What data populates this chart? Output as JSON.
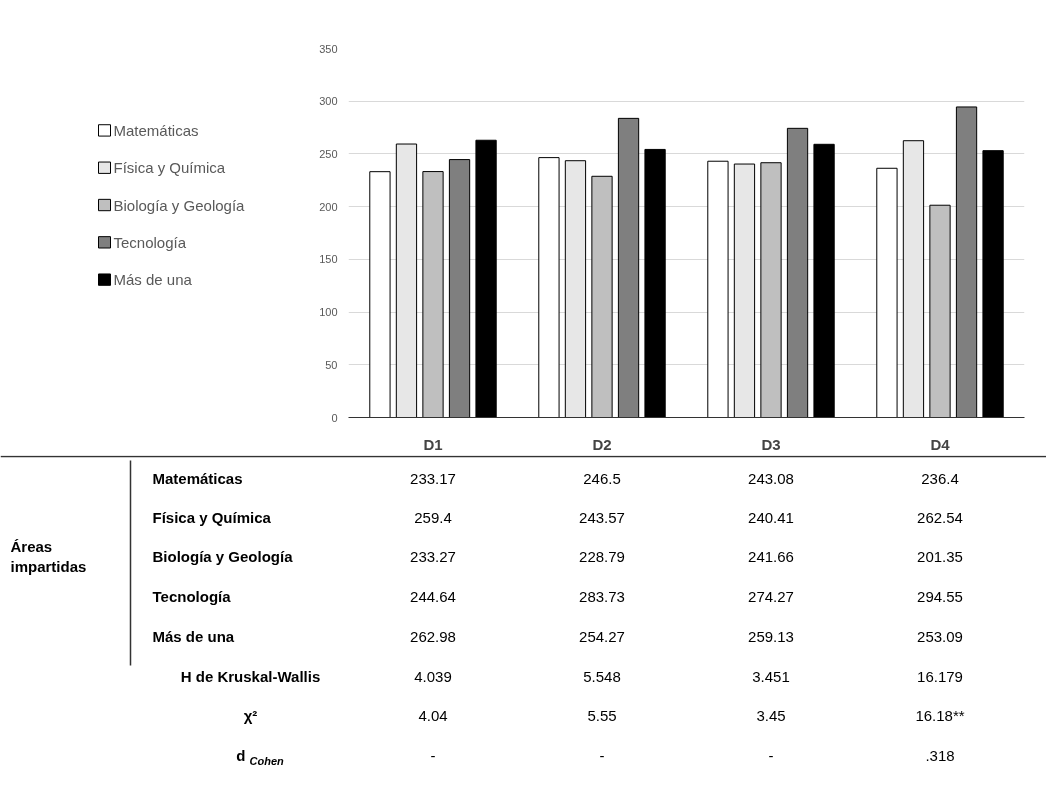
{
  "chart_data": {
    "type": "bar",
    "categories": [
      "D1",
      "D2",
      "D3",
      "D4"
    ],
    "series": [
      {
        "name": "Matemáticas",
        "color": "#ffffff",
        "values": [
          233.17,
          246.5,
          243.08,
          236.4
        ]
      },
      {
        "name": "Física y Química",
        "color": "#e7e7e7",
        "values": [
          259.4,
          243.57,
          240.41,
          262.54
        ]
      },
      {
        "name": "Biología y Geología",
        "color": "#bfbfbf",
        "values": [
          233.27,
          228.79,
          241.66,
          201.35
        ]
      },
      {
        "name": "Tecnología",
        "color": "#7f7f7f",
        "values": [
          244.64,
          283.73,
          274.27,
          294.55
        ]
      },
      {
        "name": "Más de una",
        "color": "#000000",
        "values": [
          262.98,
          254.27,
          259.13,
          253.09
        ]
      }
    ],
    "ylim": [
      0,
      350
    ],
    "yticks": [
      0,
      50,
      100,
      150,
      200,
      250,
      300,
      350
    ],
    "grid": "y",
    "legend": "left",
    "data_labels": true,
    "annotations": [
      "Áreas impartidas",
      "H de Kruskal-Wallis",
      "4.039",
      "5.548",
      "3.451",
      "16.179",
      "χ²",
      "4.04",
      "5.55",
      "3.45",
      "16.18**",
      "d$_{Cohen}$",
      "-",
      "-",
      "-",
      ".318"
    ]
  }
}
